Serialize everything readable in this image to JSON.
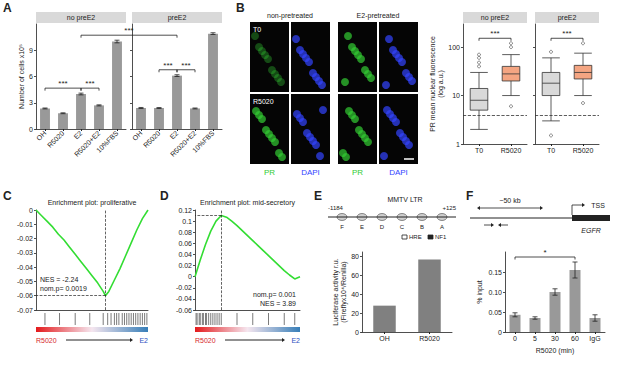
{
  "chart_data": [
    {
      "panel": "A",
      "type": "bar",
      "categories": [
        "OH",
        "R5020",
        "E2",
        "R5020+E2",
        "10%FBS"
      ],
      "series": [
        {
          "name": "no preE2",
          "values": [
            2.35,
            1.8,
            4.0,
            2.7,
            10.0
          ],
          "errors": [
            0.05,
            0.05,
            0.1,
            0.06,
            0.15
          ]
        },
        {
          "name": "preE2",
          "values": [
            2.4,
            2.4,
            6.1,
            2.35,
            10.9
          ],
          "errors": [
            0.06,
            0.05,
            0.1,
            0.05,
            0.1
          ]
        }
      ],
      "color": "#999999",
      "ylabel": "Number of cells x10⁵",
      "ylim": [
        0,
        12
      ],
      "yticks": [
        0,
        3,
        6,
        9
      ],
      "grid": false,
      "annotations": [
        {
          "text": "***",
          "from": [
            0,
            0
          ],
          "to": [
            0,
            2
          ]
        },
        {
          "text": "***",
          "from": [
            0,
            2
          ],
          "to": [
            0,
            3
          ]
        },
        {
          "text": "***",
          "from": [
            0,
            2
          ],
          "to": [
            1,
            2
          ]
        },
        {
          "text": "***",
          "from": [
            1,
            1
          ],
          "to": [
            1,
            2
          ]
        },
        {
          "text": "***",
          "from": [
            1,
            2
          ],
          "to": [
            1,
            3
          ]
        }
      ]
    },
    {
      "type": "boxplot",
      "categories": [
        "T0",
        "R5020"
      ],
      "series": [
        {
          "name": "no preE2",
          "boxes": [
            [
              2,
              5,
              8,
              14,
              30
            ],
            [
              10,
              20,
              28,
              40,
              70
            ]
          ],
          "outliers": [
            [
              40,
              48,
              60,
              70
            ],
            [
              100,
              120,
              6
            ]
          ]
        },
        {
          "name": "preE2",
          "boxes": [
            [
              3,
              10,
              18,
              30,
              60
            ],
            [
              10,
              22,
              30,
              42,
              75
            ]
          ],
          "outliers": [
            [
              1.5,
              80
            ],
            [
              120,
              7
            ]
          ]
        }
      ],
      "colors": [
        "#d9d9d9",
        "#f4a582"
      ],
      "ylabel": "PR mean nuclear fluorescence (log a.u.)",
      "log": "y",
      "ylim": [
        1,
        300
      ],
      "yticks": [
        1,
        10,
        100
      ],
      "grid": false,
      "reference_line": 4,
      "annotations": [
        {
          "text": "***",
          "from": [
            0,
            0
          ],
          "to": [
            0,
            1
          ]
        },
        {
          "text": "***",
          "from": [
            1,
            0
          ],
          "to": [
            1,
            1
          ]
        }
      ]
    },
    {
      "panel": "C",
      "type": "line",
      "title": "Enrichment plot: proliferative",
      "x": [
        0,
        0.05,
        0.1,
        0.15,
        0.2,
        0.25,
        0.3,
        0.35,
        0.4,
        0.45,
        0.5,
        0.55,
        0.6,
        0.62,
        0.65,
        0.7,
        0.75,
        0.8,
        0.85,
        0.9,
        0.95,
        1
      ],
      "values": [
        0,
        -0.004,
        -0.008,
        -0.012,
        -0.017,
        -0.021,
        -0.026,
        -0.031,
        -0.036,
        -0.041,
        -0.046,
        -0.051,
        -0.057,
        -0.06,
        -0.057,
        -0.049,
        -0.041,
        -0.032,
        -0.023,
        -0.014,
        -0.006,
        0
      ],
      "color": "#33dd33",
      "xlim": [
        0,
        1
      ],
      "ylim": [
        -0.07,
        0
      ],
      "yticks": [
        -0.07,
        -0.06,
        -0.05,
        -0.04,
        -0.03,
        -0.02,
        -0.01,
        0
      ],
      "tick_labels": "y",
      "grid": false,
      "annotations": [
        "NES = -2.24",
        "nom.p= 0.0019"
      ],
      "hits": [
        0.08,
        0.21,
        0.35,
        0.48,
        0.6,
        0.64,
        0.67,
        0.7,
        0.72,
        0.74,
        0.77,
        0.79,
        0.81,
        0.83,
        0.85,
        0.87,
        0.89,
        0.91,
        0.93,
        0.95,
        0.97,
        0.99
      ],
      "phenotype_labels": [
        "R5020",
        "E2"
      ]
    },
    {
      "panel": "D",
      "type": "line",
      "title": "Enrichment plot: mid-secretory",
      "x": [
        0,
        0.05,
        0.1,
        0.15,
        0.2,
        0.25,
        0.3,
        0.35,
        0.4,
        0.45,
        0.5,
        0.55,
        0.6,
        0.65,
        0.7,
        0.75,
        0.8,
        0.85,
        0.9,
        0.95,
        1
      ],
      "values": [
        0,
        0.03,
        0.058,
        0.082,
        0.1,
        0.11,
        0.107,
        0.1,
        0.092,
        0.083,
        0.074,
        0.065,
        0.056,
        0.047,
        0.038,
        0.029,
        0.02,
        0.011,
        0.003,
        -0.004,
        0
      ],
      "color": "#33dd33",
      "xlim": [
        0,
        1
      ],
      "ylim": [
        -0.06,
        0.12
      ],
      "yticks": [
        -0.06,
        -0.04,
        -0.02,
        0,
        0.02,
        0.04,
        0.06,
        0.08,
        0.1,
        0.12
      ],
      "tick_labels": "y",
      "grid": false,
      "annotations": [
        "nom.p= 0.001",
        "NES = 3.89"
      ],
      "hits": [
        0.01,
        0.02,
        0.04,
        0.05,
        0.07,
        0.08,
        0.1,
        0.11,
        0.13,
        0.15,
        0.17,
        0.19,
        0.21,
        0.23,
        0.25,
        0.4,
        0.55,
        0.7,
        0.85,
        0.95
      ],
      "phenotype_labels": [
        "R5020",
        "E2"
      ]
    },
    {
      "panel": "E",
      "type": "bar",
      "categories": [
        "OH",
        "R5020"
      ],
      "values": [
        28,
        77
      ],
      "color": "#808080",
      "ylabel": "Luciferase activity r.u. (Fireflyx10⁴/Renilla)",
      "ylim": [
        0,
        85
      ],
      "yticks": [
        0,
        20,
        40,
        60,
        80
      ],
      "grid": false
    },
    {
      "panel": "F",
      "type": "bar",
      "categories": [
        "0",
        "5",
        "30",
        "60",
        "IgG"
      ],
      "values": [
        0.043,
        0.035,
        0.1,
        0.155,
        0.035
      ],
      "errors": [
        0.005,
        0.003,
        0.008,
        0.02,
        0.008
      ],
      "color": "#999999",
      "xlabel": "R5020 (min)",
      "ylabel": "% input",
      "ylim": [
        0,
        0.2
      ],
      "yticks": [
        0,
        0.05,
        {
          "value": 0.1,
          "label": "0.10"
        },
        0.15
      ],
      "grid": false,
      "annotations": [
        {
          "text": "*",
          "from": [
            0,
            0
          ],
          "to": [
            0,
            3
          ]
        }
      ]
    }
  ],
  "images": {
    "panel": "B",
    "columns": [
      "non-pretreated",
      "E2-pretreated"
    ],
    "rows": [
      "T0",
      "R5020"
    ],
    "channels": [
      {
        "name": "PR",
        "color": "#33cc33"
      },
      {
        "name": "DAPI",
        "color": "#3344ff"
      }
    ]
  },
  "diagrams": {
    "E": {
      "title": "MMTV LTR",
      "start": "-1184",
      "end": "+125",
      "sites": [
        "F",
        "E",
        "D",
        "C",
        "B",
        "A"
      ],
      "elements": [
        "HRE",
        "NF1"
      ]
    },
    "F": {
      "distance": "~50 kb",
      "tss": "TSS",
      "gene": "EGFR"
    }
  }
}
